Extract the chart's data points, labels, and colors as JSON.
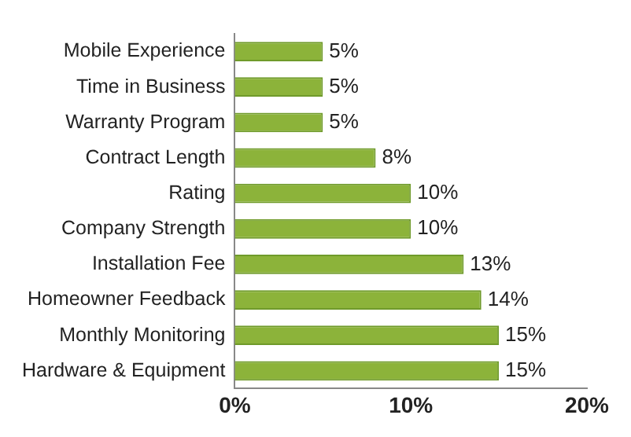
{
  "chart_data": {
    "type": "bar",
    "orientation": "horizontal",
    "categories": [
      "Mobile Experience",
      "Time in Business",
      "Warranty Program",
      "Contract Length",
      "Rating",
      "Company Strength",
      "Installation Fee",
      "Homeowner Feedback",
      "Monthly Monitoring",
      "Hardware & Equipment"
    ],
    "values": [
      5,
      5,
      5,
      8,
      10,
      10,
      13,
      14,
      15,
      15
    ],
    "color": "#8cb33a",
    "value_labels": [
      "5%",
      "5%",
      "5%",
      "8%",
      "10%",
      "10%",
      "13%",
      "14%",
      "15%",
      "15%"
    ],
    "xlim": [
      0,
      20
    ],
    "xticks": [
      {
        "value": 0,
        "label": "0%"
      },
      {
        "value": 10,
        "label": "10%"
      },
      {
        "value": 20,
        "label": "20%"
      }
    ],
    "grid": false,
    "legend": false
  }
}
